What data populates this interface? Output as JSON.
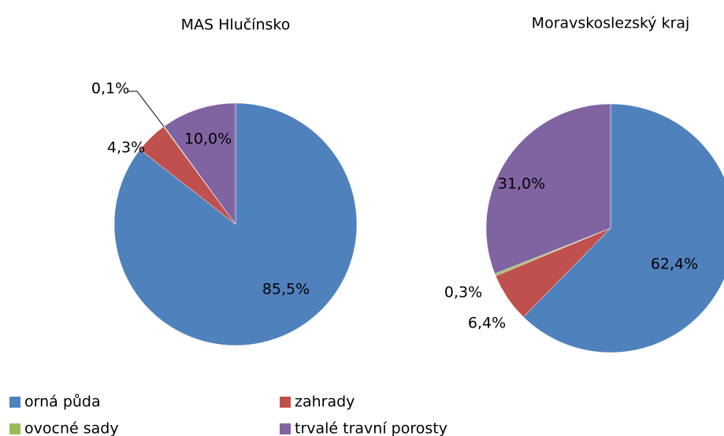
{
  "chart_data": [
    {
      "type": "pie",
      "title": "MAS Hlučínsko",
      "categories": [
        "orná půda",
        "zahrady",
        "ovocné sady",
        "trvalé travní porosty"
      ],
      "values": [
        85.5,
        4.3,
        0.1,
        10.0
      ],
      "value_labels": [
        "85,5%",
        "4,3%",
        "0,1%",
        "10,0%"
      ],
      "colors": [
        "#4f81bd",
        "#c0504d",
        "#9bbb59",
        "#8064a2"
      ]
    },
    {
      "type": "pie",
      "title": "Moravskoslezský kraj",
      "categories": [
        "orná půda",
        "zahrady",
        "ovocné sady",
        "trvalé travní porosty"
      ],
      "values": [
        62.4,
        6.4,
        0.3,
        31.0
      ],
      "value_labels": [
        "62,4%",
        "6,4%",
        "0,3%",
        "31,0%"
      ],
      "colors": [
        "#4f81bd",
        "#c0504d",
        "#9bbb59",
        "#8064a2"
      ]
    }
  ]
}
